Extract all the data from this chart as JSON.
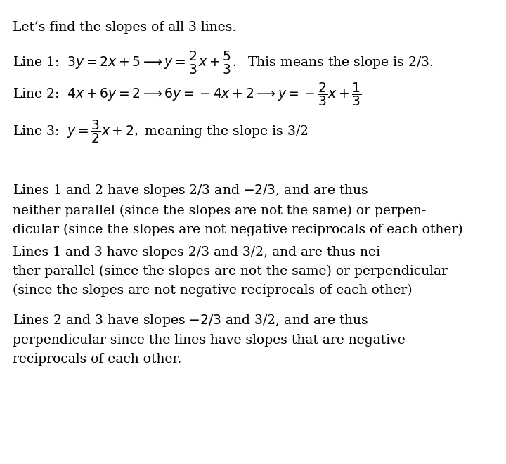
{
  "background_color": "#ffffff",
  "text_color": "#000000",
  "font_family": "serif",
  "title_line": "Let’s find the slopes of all 3 lines.",
  "line1_label": "Line 1: ",
  "line1_math": "$3y = 2x+5 \\longrightarrow y = \\dfrac{2}{3}x+\\dfrac{5}{3}.$",
  "line1_suffix": "  This means the slope is 2/3.",
  "line2_label": "Line 2: ",
  "line2_math": "$4x + 6y = 2 \\longrightarrow 6y = -4x + 2 \\longrightarrow y = -\\dfrac{2}{3}x + \\dfrac{1}{3}$",
  "line3_label": "Line 3:  ",
  "line3_math": "$y = \\dfrac{3}{2}x + 2,$",
  "line3_suffix": " meaning the slope is 3/2",
  "para1": "Lines 1 and 2 have slopes 2/3 and $-$2/3, and are thus neither parallel (since the slopes are not the same) or perpendicular (since the slopes are not negative reciprocals of each other)",
  "para2": "Lines 1 and 3 have slopes 2/3 and 3/2, and are thus neither parallel (since the slopes are not the same) or perpendicular (since the slopes are not negative reciprocals of each other)",
  "para3": "Lines 2 and 3 have slopes $-$2/3 and 3/2, and are thus perpendicular since the lines have slopes that are negative reciprocals of each other.",
  "figsize": [
    7.2,
    6.6
  ],
  "dpi": 100
}
